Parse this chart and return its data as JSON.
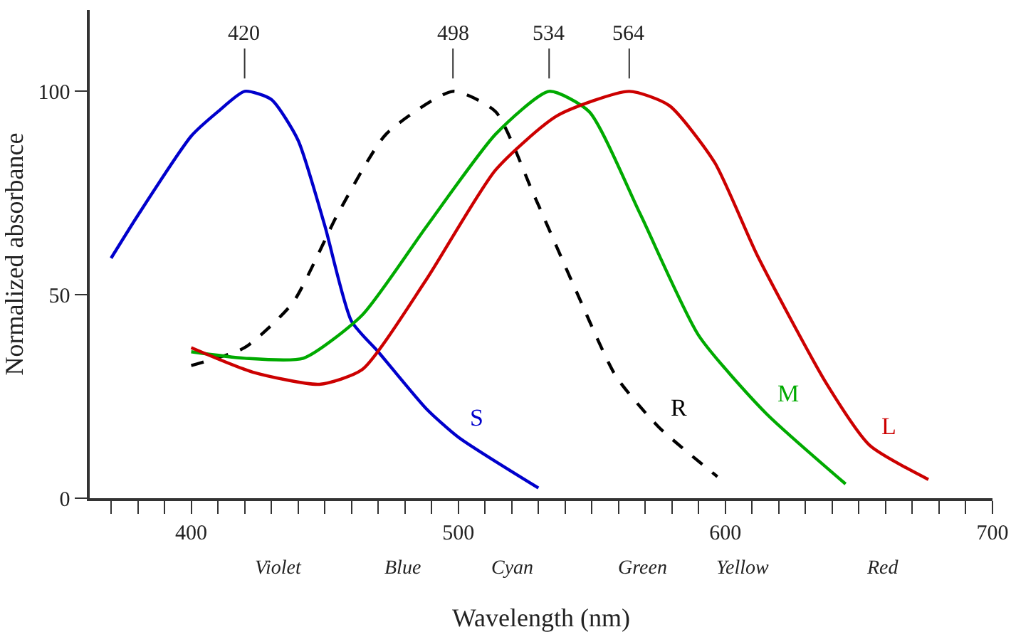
{
  "chart_data": {
    "type": "line",
    "xlabel": "Wavelength (nm)",
    "ylabel": "Normalized absorbance",
    "xlim": [
      362,
      700
    ],
    "ylim": [
      0,
      120
    ],
    "xticks": [
      {
        "value": 370,
        "label": null
      },
      {
        "value": 380,
        "label": null
      },
      {
        "value": 390,
        "label": null
      },
      400,
      {
        "value": 410,
        "label": null
      },
      {
        "value": 420,
        "label": null
      },
      {
        "value": 430,
        "label": null
      },
      {
        "value": 440,
        "label": null
      },
      {
        "value": 450,
        "label": null
      },
      {
        "value": 460,
        "label": null
      },
      {
        "value": 470,
        "label": null
      },
      {
        "value": 480,
        "label": null
      },
      {
        "value": 490,
        "label": null
      },
      500,
      {
        "value": 510,
        "label": null
      },
      {
        "value": 520,
        "label": null
      },
      {
        "value": 530,
        "label": null
      },
      {
        "value": 540,
        "label": null
      },
      {
        "value": 550,
        "label": null
      },
      {
        "value": 560,
        "label": null
      },
      {
        "value": 570,
        "label": null
      },
      {
        "value": 580,
        "label": null
      },
      {
        "value": 590,
        "label": null
      },
      600,
      {
        "value": 610,
        "label": null
      },
      {
        "value": 620,
        "label": null
      },
      {
        "value": 630,
        "label": null
      },
      {
        "value": 640,
        "label": null
      },
      {
        "value": 650,
        "label": null
      },
      {
        "value": 660,
        "label": null
      },
      {
        "value": 670,
        "label": null
      },
      {
        "value": 680,
        "label": null
      },
      {
        "value": 690,
        "label": null
      },
      700
    ],
    "yticks": [
      0,
      50,
      100
    ],
    "grid": false,
    "legend": false,
    "marker": "none",
    "annotations": [
      {
        "text": "420",
        "x": 420,
        "y": 100
      },
      {
        "text": "498",
        "x": 498,
        "y": 100
      },
      {
        "text": "534",
        "x": 534,
        "y": 100
      },
      {
        "text": "564",
        "x": 564,
        "y": 100
      },
      "Violet",
      "Blue",
      "Cyan",
      "Green",
      "Yellow",
      "Red"
    ],
    "series": [
      {
        "name": "S",
        "color": "#0000cc",
        "line_style": "solid",
        "x": [
          370,
          380,
          400,
          410,
          420,
          430,
          440,
          450,
          460,
          470,
          488,
          500,
          530
        ],
        "values": [
          59,
          69.5,
          89,
          95,
          100,
          98,
          88,
          67,
          43.5,
          36,
          22,
          15,
          2.5
        ]
      },
      {
        "name": "R",
        "color": "#000000",
        "line_style": "dashed",
        "x": [
          400,
          420,
          438,
          455,
          473,
          498,
          514,
          528,
          543,
          559,
          575,
          597
        ],
        "values": [
          32.6,
          37,
          48,
          70,
          89.5,
          100,
          95,
          75,
          52.6,
          30,
          17.5,
          5.3
        ]
      },
      {
        "name": "M",
        "color": "#00aa00",
        "line_style": "solid",
        "x": [
          400,
          420,
          442,
          464,
          488,
          514,
          534,
          549,
          568,
          590,
          615,
          645
        ],
        "values": [
          36,
          34.4,
          34.4,
          45,
          66.7,
          89.5,
          100,
          95,
          70,
          40,
          21,
          3.5
        ]
      },
      {
        "name": "L",
        "color": "#cc0000",
        "line_style": "solid",
        "x": [
          400,
          423,
          448,
          464,
          488,
          514,
          537,
          564,
          579,
          596,
          612,
          638,
          654,
          676
        ],
        "values": [
          37,
          31,
          28,
          31.6,
          53.7,
          80.7,
          94,
          100,
          96.5,
          82.5,
          59.6,
          28,
          13,
          4.6
        ]
      }
    ]
  }
}
